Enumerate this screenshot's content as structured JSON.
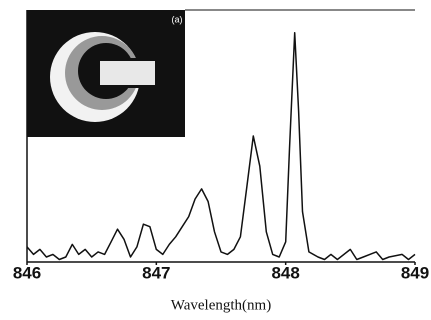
{
  "chart_data": {
    "type": "line",
    "x_label": "Wavelength(nm)",
    "inset_label": "(a)",
    "x": [
      846.0,
      846.05,
      846.1,
      846.15,
      846.2,
      846.25,
      846.3,
      846.35,
      846.4,
      846.45,
      846.5,
      846.55,
      846.6,
      846.65,
      846.7,
      846.75,
      846.8,
      846.85,
      846.9,
      846.95,
      847.0,
      847.05,
      847.1,
      847.15,
      847.2,
      847.25,
      847.3,
      847.35,
      847.4,
      847.45,
      847.5,
      847.55,
      847.6,
      847.65,
      847.7,
      847.75,
      847.8,
      847.85,
      847.9,
      847.95,
      848.0,
      848.03,
      848.07,
      848.1,
      848.13,
      848.18,
      848.25,
      848.3,
      848.35,
      848.4,
      848.5,
      848.55,
      848.6,
      848.7,
      848.75,
      848.8,
      848.9,
      848.95,
      849.0
    ],
    "values": [
      6,
      3,
      5,
      2,
      3,
      1,
      2,
      7,
      3,
      5,
      2,
      4,
      3,
      8,
      13,
      9,
      2,
      6,
      15,
      14,
      5,
      3,
      7,
      10,
      14,
      18,
      25,
      29,
      24,
      12,
      4,
      3,
      5,
      10,
      30,
      50,
      38,
      12,
      3,
      2,
      8,
      45,
      91,
      60,
      20,
      4,
      2,
      1,
      3,
      1,
      5,
      1,
      2,
      4,
      1,
      2,
      3,
      1,
      3
    ],
    "color": "#111111",
    "xlim": [
      846,
      849
    ],
    "xticks": [
      846,
      847,
      848,
      849
    ],
    "ylim": [
      0,
      100
    ]
  }
}
